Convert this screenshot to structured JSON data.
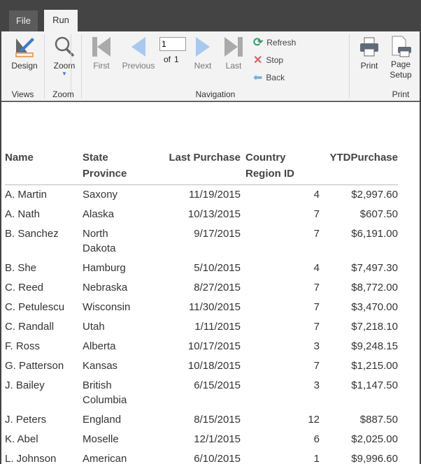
{
  "tabs": [
    {
      "label": "File"
    },
    {
      "label": "Run",
      "active": true
    }
  ],
  "ribbon": {
    "groups": {
      "views": "Views",
      "zoom": "Zoom",
      "navigation": "Navigation",
      "print": "Print"
    },
    "design": "Design",
    "zoom": "Zoom",
    "first": "First",
    "previous": "Previous",
    "next": "Next",
    "last": "Last",
    "page_value": "1",
    "of_label": "of",
    "page_total": "1",
    "refresh": "Refresh",
    "stop": "Stop",
    "back": "Back",
    "print": "Print",
    "page_setup_1": "Page",
    "page_setup_2": "Setup"
  },
  "table": {
    "headers": [
      {
        "l1": "Name",
        "l2": ""
      },
      {
        "l1": "State",
        "l2": "Province"
      },
      {
        "l1": "Last Purchase",
        "l2": ""
      },
      {
        "l1": "Country",
        "l2": "Region ID"
      },
      {
        "l1": "YTDPurchase",
        "l2": ""
      }
    ],
    "rows": [
      [
        "A. Martin",
        "Saxony",
        "11/19/2015",
        "4",
        "$2,997.60"
      ],
      [
        "A. Nath",
        "Alaska",
        "10/13/2015",
        "7",
        "$607.50"
      ],
      [
        "B. Sanchez",
        "North Dakota",
        "9/17/2015",
        "7",
        "$6,191.00"
      ],
      [
        "B. She",
        "Hamburg",
        "5/10/2015",
        "4",
        "$7,497.30"
      ],
      [
        "C. Reed",
        "Nebraska",
        "8/27/2015",
        "7",
        "$8,772.00"
      ],
      [
        "C. Petulescu",
        "Wisconsin",
        "11/30/2015",
        "7",
        "$3,470.00"
      ],
      [
        "C. Randall",
        "Utah",
        "1/11/2015",
        "7",
        "$7,218.10"
      ],
      [
        "F. Ross",
        "Alberta",
        "10/17/2015",
        "3",
        "$9,248.15"
      ],
      [
        "G. Patterson",
        "Kansas",
        "10/18/2015",
        "7",
        "$1,215.00"
      ],
      [
        "J. Bailey",
        "British Columbia",
        "6/15/2015",
        "3",
        "$1,147.50"
      ],
      [
        "J. Peters",
        "England",
        "8/15/2015",
        "12",
        "$887.50"
      ],
      [
        "K. Abel",
        "Moselle",
        "12/1/2015",
        "6",
        "$2,025.00"
      ],
      [
        "L. Johnson",
        "American Samoa",
        "6/10/2015",
        "1",
        "$9,996.60"
      ]
    ]
  }
}
